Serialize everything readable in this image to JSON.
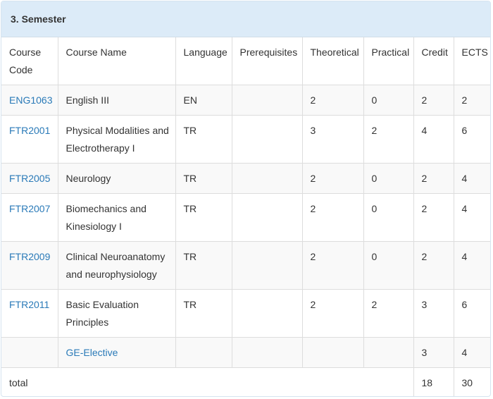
{
  "semester_title": "3. Semester",
  "columns": [
    "Course Code",
    "Course Name",
    "Language",
    "Prerequisites",
    "Theoretical",
    "Practical",
    "Credit",
    "ECTS"
  ],
  "rows": [
    {
      "code": "ENG1063",
      "name": "English III",
      "language": "EN",
      "prerequisites": "",
      "theoretical": "2",
      "practical": "0",
      "credit": "2",
      "ects": "2"
    },
    {
      "code": "FTR2001",
      "name": "Physical Modalities and Electrotherapy I",
      "language": "TR",
      "prerequisites": "",
      "theoretical": "3",
      "practical": "2",
      "credit": "4",
      "ects": "6"
    },
    {
      "code": "FTR2005",
      "name": "Neurology",
      "language": "TR",
      "prerequisites": "",
      "theoretical": "2",
      "practical": "0",
      "credit": "2",
      "ects": "4"
    },
    {
      "code": "FTR2007",
      "name": "Biomechanics and Kinesiology I",
      "language": "TR",
      "prerequisites": "",
      "theoretical": "2",
      "practical": "0",
      "credit": "2",
      "ects": "4"
    },
    {
      "code": "FTR2009",
      "name": "Clinical Neuroanatomy and neurophysiology",
      "language": "TR",
      "prerequisites": "",
      "theoretical": "2",
      "practical": "0",
      "credit": "2",
      "ects": "4"
    },
    {
      "code": "FTR2011",
      "name": "Basic Evaluation Principles",
      "language": "TR",
      "prerequisites": "",
      "theoretical": "2",
      "practical": "2",
      "credit": "3",
      "ects": "6"
    }
  ],
  "elective": {
    "name": "GE-Elective",
    "credit": "3",
    "ects": "4"
  },
  "total": {
    "label": "total",
    "credit": "18",
    "ects": "30"
  },
  "colors": {
    "link": "#2a7ab8",
    "heading_bg": "#dcebf8",
    "stripe_bg": "#f9f9f9"
  }
}
